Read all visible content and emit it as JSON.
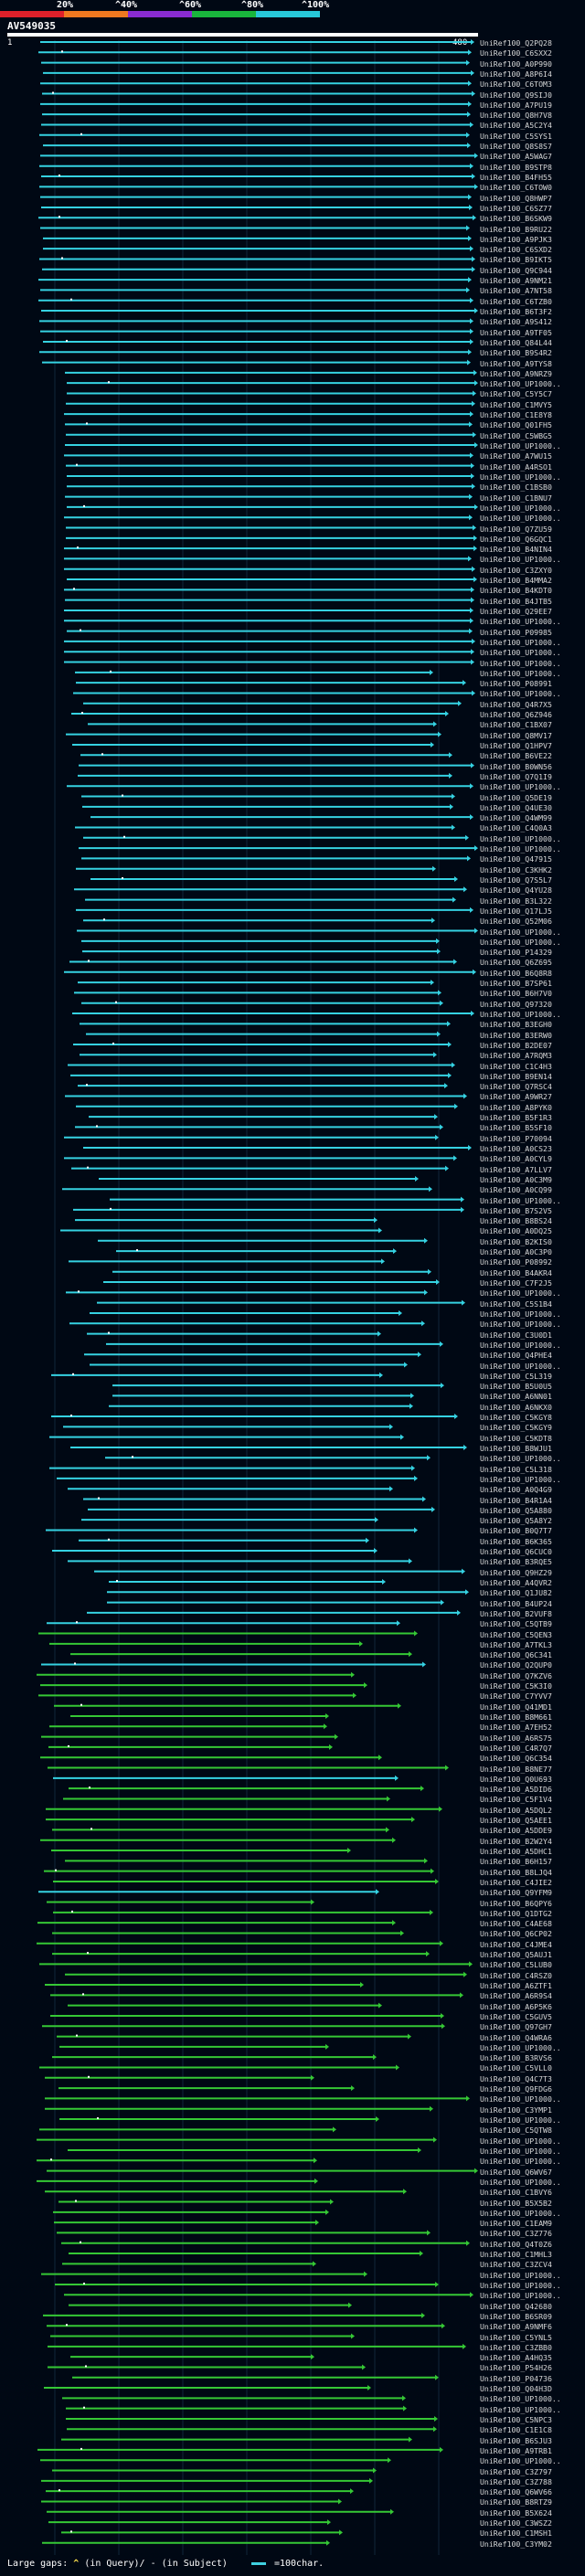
{
  "scale": {
    "labels": [
      "20%",
      "^40%",
      "^60%",
      "^80%",
      "^100%"
    ],
    "colors": [
      "#e0202a",
      "#f07820",
      "#8a2bd0",
      "#19b53c",
      "#27c7d8"
    ]
  },
  "query": {
    "id": "AV549035",
    "ruler_start": "1",
    "ruler_end": "480"
  },
  "legend": {
    "prefix": "Large gaps: ",
    "caret": "^",
    "query_text": "(in Query)/",
    "dash": "-",
    "subject_text": "(in Subject)",
    "scale_text": "=100char."
  },
  "hits": [
    "UniRef100_Q2PQ28",
    "UniRef100_C6SXX2",
    "UniRef100_A0P990",
    "UniRef100_A8P6I4",
    "UniRef100_C6TOM3",
    "UniRef100_Q9SIJ0",
    "UniRef100_A7PU19",
    "UniRef100_Q8H7V8",
    "UniRef100_A5C2Y4",
    "UniRef100_C5SYS1",
    "UniRef100_Q8S8S7",
    "UniRef100_A5WAG7",
    "UniRef100_B9STP8",
    "UniRef100_B4FH55",
    "UniRef100_C6TOW0",
    "UniRef100_Q8HWP7",
    "UniRef100_C6SZ77",
    "UniRef100_B6SKW9",
    "UniRef100_B9RU22",
    "UniRef100_A9PJK3",
    "UniRef100_C6SXD2",
    "UniRef100_B9IKT5",
    "UniRef100_Q9C944",
    "UniRef100_A9NM21",
    "UniRef100_A7NT58",
    "UniRef100_C6TZB0",
    "UniRef100_B6T3F2",
    "UniRef100_A9S412",
    "UniRef100_A9TF05",
    "UniRef100_Q84L44",
    "UniRef100_B9S4R2",
    "UniRef100_A9TYS8",
    "UniRef100_A9NRZ9",
    "UniRef100_UP1000..",
    "UniRef100_C5Y5C7",
    "UniRef100_C1MVY5",
    "UniRef100_C1E8Y8",
    "UniRef100_Q01FH5",
    "UniRef100_C5WBG5",
    "UniRef100_UP1000..",
    "UniRef100_A7WU15",
    "UniRef100_A4RSO1",
    "UniRef100_UP1000..",
    "UniRef100_C1BSB0",
    "UniRef100_C1BNU7",
    "UniRef100_UP1000..",
    "UniRef100_UP1000..",
    "UniRef100_Q7ZU59",
    "UniRef100_Q6GQC1",
    "UniRef100_B4NIN4",
    "UniRef100_UP1000..",
    "UniRef100_C3ZXY0",
    "UniRef100_B4MMA2",
    "UniRef100_B4KDT0",
    "UniRef100_B4JTB5",
    "UniRef100_Q29EE7",
    "UniRef100_UP1000..",
    "UniRef100_P09985",
    "UniRef100_UP1000..",
    "UniRef100_UP1000..",
    "UniRef100_UP1000..",
    "UniRef100_UP1000..",
    "UniRef100_P08991",
    "UniRef100_UP1000..",
    "UniRef100_Q4R7X5",
    "UniRef100_Q6Z946",
    "UniRef100_C1BX07",
    "UniRef100_Q8MV17",
    "UniRef100_Q1HPV7",
    "UniRef100_B6VE22",
    "UniRef100_B0WN56",
    "UniRef100_Q7Q1I9",
    "UniRef100_UP1000..",
    "UniRef100_Q5DE19",
    "UniRef100_Q4UE30",
    "UniRef100_Q4WM99",
    "UniRef100_C4Q0A3",
    "UniRef100_UP1000..",
    "UniRef100_UP1000..",
    "UniRef100_Q47915",
    "UniRef100_C3KHK2",
    "UniRef100_Q7S5L7",
    "UniRef100_Q4YU28",
    "UniRef100_B3L322",
    "UniRef100_Q17LJ5",
    "UniRef100_Q52M06",
    "UniRef100_UP1000..",
    "UniRef100_UP1000..",
    "UniRef100_P14329",
    "UniRef100_Q6Z695",
    "UniRef100_B6Q8R8",
    "UniRef100_B7SP61",
    "UniRef100_B6H7V0",
    "UniRef100_Q97320",
    "UniRef100_UP1000..",
    "UniRef100_B3EGH0",
    "UniRef100_B3ERW0",
    "UniRef100_B2DE07",
    "UniRef100_A7RQM3",
    "UniRef100_C1C4H3",
    "UniRef100_B9EN14",
    "UniRef100_Q7RSC4",
    "UniRef100_A9WR27",
    "UniRef100_A8PYK0",
    "UniRef100_B5F1R3",
    "UniRef100_B5SF10",
    "UniRef100_P70094",
    "UniRef100_A0CS23",
    "UniRef100_A0CYL9",
    "UniRef100_A7LLV7",
    "UniRef100_A0C3M9",
    "UniRef100_A0CQ99",
    "UniRef100_UP1000..",
    "UniRef100_B7S2V5",
    "UniRef100_B8BS24",
    "UniRef100_A0DQ25",
    "UniRef100_B2KIS0",
    "UniRef100_A0C3P0",
    "UniRef100_P08992",
    "UniRef100_B4AKR4",
    "UniRef100_C7F2J5",
    "UniRef100_UP1000..",
    "UniRef100_C5S1B4",
    "UniRef100_UP1000..",
    "UniRef100_UP1000..",
    "UniRef100_C3U0D1",
    "UniRef100_UP1000..",
    "UniRef100_Q4PHE4",
    "UniRef100_UP1000..",
    "UniRef100_C5L319",
    "UniRef100_B5U0U5",
    "UniRef100_A6NN01",
    "UniRef100_A6NKX0",
    "UniRef100_C5KGY8",
    "UniRef100_C5KGY9",
    "UniRef100_C5KDT8",
    "UniRef100_B8WJU1",
    "UniRef100_UP1000..",
    "UniRef100_C5L318",
    "UniRef100_UP1000..",
    "UniRef100_A0Q4G9",
    "UniRef100_B4R1A4",
    "UniRef100_Q5A880",
    "UniRef100_Q5A8Y2",
    "UniRef100_B0Q7T7",
    "UniRef100_B6K365",
    "UniRef100_Q6CUC0",
    "UniRef100_B3RQE5",
    "UniRef100_Q9HZ29",
    "UniRef100_A4QVR2",
    "UniRef100_Q1JU82",
    "UniRef100_B4UP24",
    "UniRef100_B2VUF8",
    "UniRef100_C5QTB9",
    "UniRef100_C5QEN3",
    "UniRef100_A7TKL3",
    "UniRef100_Q6C341",
    "UniRef100_Q2QUP0",
    "UniRef100_Q7KZV6",
    "UniRef100_C5K3I0",
    "UniRef100_C7YVV7",
    "UniRef100_Q41MD1",
    "UniRef100_B8M661",
    "UniRef100_A7EH52",
    "UniRef100_A6RS75",
    "UniRef100_C4R7Q7",
    "UniRef100_Q6C354",
    "UniRef100_B8NE77",
    "UniRef100_Q0U693",
    "UniRef100_A5DID6",
    "UniRef100_C5F1V4",
    "UniRef100_A5DQL2",
    "UniRef100_Q5AEE1",
    "UniRef100_A5DDE9",
    "UniRef100_B2W2Y4",
    "UniRef100_A5DHC1",
    "UniRef100_B6H157",
    "UniRef100_B8LJQ4",
    "UniRef100_C4JIE2",
    "UniRef100_Q9YFM9",
    "UniRef100_B6QPY6",
    "UniRef100_Q1DTG2",
    "UniRef100_C4AE68",
    "UniRef100_Q6CP02",
    "UniRef100_C4JME4",
    "UniRef100_Q5AUJ1",
    "UniRef100_C5LUB0",
    "UniRef100_C4RSZ0",
    "UniRef100_A6ZTF1",
    "UniRef100_A6R9S4",
    "UniRef100_A6P5K6",
    "UniRef100_C5GUV5",
    "UniRef100_Q97GH7",
    "UniRef100_Q4WRA6",
    "UniRef100_UP1000..",
    "UniRef100_B3RVS6",
    "UniRef100_C5VLL0",
    "UniRef100_Q4C7T3",
    "UniRef100_Q9FDG6",
    "UniRef100_UP1000..",
    "UniRef100_C3YMP1",
    "UniRef100_UP1000..",
    "UniRef100_C5QTW8",
    "UniRef100_UP1000..",
    "UniRef100_UP1000..",
    "UniRef100_UP1000..",
    "UniRef100_Q6WV67",
    "UniRef100_UP1000..",
    "UniRef100_C1BVY6",
    "UniRef100_B5X5B2",
    "UniRef100_UP1000..",
    "UniRef100_C1EAM9",
    "UniRef100_C3Z776",
    "UniRef100_Q4T0Z6",
    "UniRef100_C1MHL3",
    "UniRef100_C3ZCV4",
    "UniRef100_UP1000..",
    "UniRef100_UP1000..",
    "UniRef100_UP1000..",
    "UniRef100_Q42680",
    "UniRef100_B6SR09",
    "UniRef100_A9NMF6",
    "UniRef100_C5YNL5",
    "UniRef100_C3ZBB0",
    "UniRef100_A4HQ35",
    "UniRef100_P54H26",
    "UniRef100_P04736",
    "UniRef100_Q04H3D",
    "UniRef100_UP1000..",
    "UniRef100_UP1000..",
    "UniRef100_C5NPC3",
    "UniRef100_C1E1C8",
    "UniRef100_B6SJU3",
    "UniRef100_A9TRB1",
    "UniRef100_UP1000..",
    "UniRef100_C3Z797",
    "UniRef100_C3Z788",
    "UniRef100_Q6WV66",
    "UniRef100_B8RTZ9",
    "UniRef100_B5X624",
    "UniRef100_C3WSZ2",
    "UniRef100_C1MSH1",
    "UniRef100_C3YM02"
  ]
}
